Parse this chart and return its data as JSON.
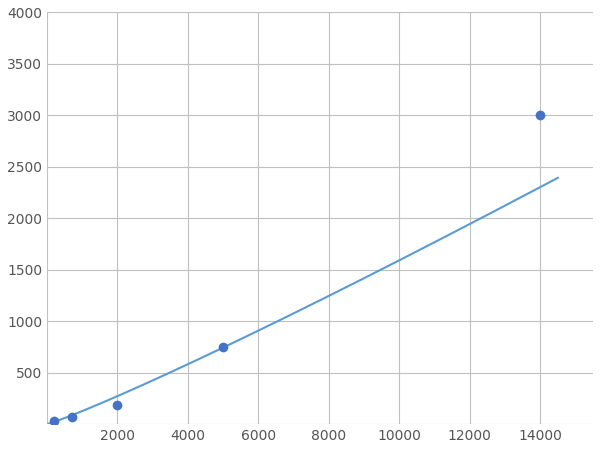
{
  "x_data": [
    200,
    700,
    2000,
    5000,
    14000
  ],
  "y_data": [
    30,
    70,
    185,
    750,
    3000
  ],
  "line_color": "#5b9bd5",
  "marker_color": "#4472c4",
  "marker_size": 7,
  "line_width": 1.5,
  "xlim": [
    0,
    15500
  ],
  "ylim": [
    0,
    4000
  ],
  "xticks": [
    0,
    2000,
    4000,
    6000,
    8000,
    10000,
    12000,
    14000
  ],
  "yticks": [
    0,
    500,
    1000,
    1500,
    2000,
    2500,
    3000,
    3500,
    4000
  ],
  "xtick_labels": [
    "",
    "2000",
    "4000",
    "6000",
    "8000",
    "10000",
    "12000",
    "14000"
  ],
  "ytick_labels": [
    "",
    "500",
    "1000",
    "1500",
    "2000",
    "2500",
    "3000",
    "3500",
    "4000"
  ],
  "grid_color": "#c0c0c0",
  "grid_linewidth": 0.8,
  "background_color": "#ffffff",
  "tick_fontsize": 10,
  "fig_width": 6.0,
  "fig_height": 4.5,
  "dpi": 100
}
